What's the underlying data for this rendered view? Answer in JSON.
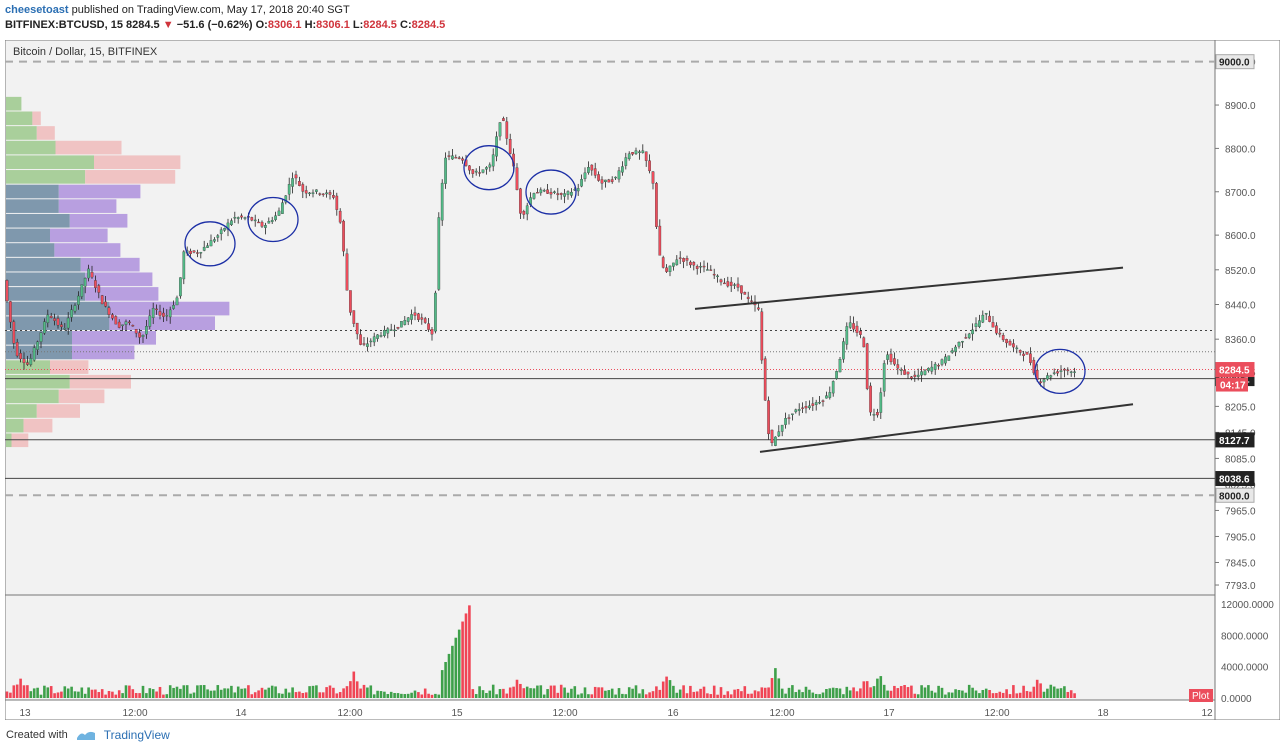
{
  "header": {
    "author": "cheesetoast",
    "published_text": "published on TradingView.com, May 17, 2018 20:40 SGT",
    "symbol": "BITFINEX:BTCUSD, 15",
    "last": "8284.5",
    "change": "−51.6 (−0.62%)",
    "open_label": "O:",
    "open": "8306.1",
    "high_label": "H:",
    "high": "8306.1",
    "low_label": "L:",
    "low": "8284.5",
    "close_label": "C:",
    "close": "8284.5"
  },
  "chart_title": "Bitcoin / Dollar, 15, BITFINEX",
  "footer": {
    "created_with": "Created with",
    "brand": "TradingView"
  },
  "colors": {
    "up": "#53b987",
    "down": "#eb4d5c",
    "wick": "#222222",
    "vp_up": "#a9cf9b",
    "vp_down": "#f0c3c3",
    "vp_up_va": "#7f98ad",
    "vp_down_va": "#b89fe0",
    "pane_bg": "#f2f2f2",
    "price_tag": "#eb4d5c",
    "level_tag": "#222222",
    "ellipse": "#1c2fa6"
  },
  "chart_data": {
    "type": "candlestick",
    "title": "Bitcoin / Dollar, 15, BITFINEX",
    "y_axis_ticks": [
      "9000.0",
      "8900.0",
      "8800.0",
      "8700.0",
      "8600.0",
      "8520.0",
      "8440.0",
      "8360.0",
      "8284.5",
      "8205.0",
      "8145.0",
      "8085.0",
      "8025.0",
      "7965.0",
      "7905.0",
      "7845.0",
      "7793.0"
    ],
    "ylim": [
      7770,
      9050
    ],
    "x_axis_ticks": [
      "13",
      "12:00",
      "14",
      "12:00",
      "15",
      "12:00",
      "16",
      "12:00",
      "17",
      "12:00",
      "18",
      "12"
    ],
    "price_labels": {
      "level_9000": "9000.0",
      "last_price": "8284.5",
      "countdown": "04:17",
      "level_8269": "8269.1",
      "level_8127": "8127.7",
      "level_8038": "8038.6",
      "level_8000": "8000.0"
    },
    "price_path": [
      [
        0,
        8500
      ],
      [
        12,
        8330
      ],
      [
        25,
        8300
      ],
      [
        45,
        8420
      ],
      [
        60,
        8380
      ],
      [
        75,
        8460
      ],
      [
        85,
        8520
      ],
      [
        100,
        8440
      ],
      [
        115,
        8390
      ],
      [
        125,
        8400
      ],
      [
        138,
        8360
      ],
      [
        150,
        8430
      ],
      [
        162,
        8410
      ],
      [
        175,
        8460
      ],
      [
        180,
        8560
      ],
      [
        195,
        8560
      ],
      [
        215,
        8600
      ],
      [
        230,
        8640
      ],
      [
        245,
        8640
      ],
      [
        260,
        8620
      ],
      [
        275,
        8650
      ],
      [
        290,
        8740
      ],
      [
        300,
        8700
      ],
      [
        315,
        8700
      ],
      [
        330,
        8690
      ],
      [
        338,
        8620
      ],
      [
        345,
        8440
      ],
      [
        358,
        8340
      ],
      [
        375,
        8370
      ],
      [
        395,
        8390
      ],
      [
        410,
        8420
      ],
      [
        420,
        8400
      ],
      [
        430,
        8370
      ],
      [
        436,
        8660
      ],
      [
        442,
        8780
      ],
      [
        458,
        8780
      ],
      [
        470,
        8740
      ],
      [
        488,
        8760
      ],
      [
        498,
        8880
      ],
      [
        510,
        8760
      ],
      [
        518,
        8640
      ],
      [
        530,
        8700
      ],
      [
        545,
        8700
      ],
      [
        560,
        8690
      ],
      [
        575,
        8710
      ],
      [
        585,
        8760
      ],
      [
        598,
        8720
      ],
      [
        612,
        8730
      ],
      [
        625,
        8790
      ],
      [
        640,
        8790
      ],
      [
        650,
        8720
      ],
      [
        655,
        8560
      ],
      [
        662,
        8510
      ],
      [
        675,
        8550
      ],
      [
        690,
        8530
      ],
      [
        705,
        8520
      ],
      [
        720,
        8490
      ],
      [
        735,
        8480
      ],
      [
        745,
        8450
      ],
      [
        755,
        8430
      ],
      [
        760,
        8260
      ],
      [
        767,
        8110
      ],
      [
        780,
        8170
      ],
      [
        795,
        8200
      ],
      [
        810,
        8210
      ],
      [
        825,
        8230
      ],
      [
        835,
        8300
      ],
      [
        845,
        8400
      ],
      [
        860,
        8360
      ],
      [
        866,
        8190
      ],
      [
        875,
        8190
      ],
      [
        882,
        8330
      ],
      [
        895,
        8290
      ],
      [
        910,
        8270
      ],
      [
        925,
        8290
      ],
      [
        940,
        8310
      ],
      [
        955,
        8350
      ],
      [
        968,
        8380
      ],
      [
        982,
        8420
      ],
      [
        995,
        8370
      ],
      [
        1010,
        8340
      ],
      [
        1025,
        8320
      ],
      [
        1035,
        8260
      ],
      [
        1048,
        8280
      ],
      [
        1060,
        8290
      ],
      [
        1072,
        8284.5
      ]
    ],
    "ellipses_x": [
      205,
      268,
      484,
      546,
      1055
    ],
    "trend_lines": [
      {
        "name": "upper-channel",
        "from": [
          690,
          8430
        ],
        "to": [
          1118,
          8525
        ]
      },
      {
        "name": "lower-channel",
        "from": [
          755,
          8100
        ],
        "to": [
          1128,
          8210
        ]
      }
    ],
    "horizontal_levels": [
      {
        "price": 9000,
        "style": "dashed"
      },
      {
        "price": 8380,
        "style": "dotted"
      },
      {
        "price": 8331,
        "style": "dotted-thin"
      },
      {
        "price": 8290,
        "style": "dotted-red"
      },
      {
        "price": 8269,
        "style": "solid"
      },
      {
        "price": 8128,
        "style": "solid"
      },
      {
        "price": 8039,
        "style": "solid"
      },
      {
        "price": 8000,
        "style": "dashed"
      }
    ],
    "volume_profile": {
      "price_range": [
        8110,
        8920
      ],
      "rows": [
        {
          "up": 0.14,
          "down": 0.0
        },
        {
          "up": 0.24,
          "down": 0.07
        },
        {
          "up": 0.28,
          "down": 0.15
        },
        {
          "up": 0.45,
          "down": 0.55
        },
        {
          "up": 0.8,
          "down": 0.72
        },
        {
          "up": 0.72,
          "down": 0.75
        },
        {
          "up": 0.48,
          "down": 0.68,
          "va": true
        },
        {
          "up": 0.48,
          "down": 0.48,
          "va": true
        },
        {
          "up": 0.58,
          "down": 0.48,
          "va": true
        },
        {
          "up": 0.4,
          "down": 0.48,
          "va": true
        },
        {
          "up": 0.44,
          "down": 0.55,
          "va": true
        },
        {
          "up": 0.68,
          "down": 0.49,
          "va": true
        },
        {
          "up": 0.72,
          "down": 0.56,
          "va": true
        },
        {
          "up": 0.72,
          "down": 0.61,
          "va": true
        },
        {
          "up": 0.94,
          "down": 1.0,
          "va": true
        },
        {
          "up": 0.94,
          "down": 0.88,
          "va": true
        },
        {
          "up": 0.6,
          "down": 0.7,
          "va": true
        },
        {
          "up": 0.6,
          "down": 0.52,
          "va": true
        },
        {
          "up": 0.4,
          "down": 0.32
        },
        {
          "up": 0.58,
          "down": 0.51
        },
        {
          "up": 0.48,
          "down": 0.38
        },
        {
          "up": 0.28,
          "down": 0.36
        },
        {
          "up": 0.16,
          "down": 0.24
        },
        {
          "up": 0.05,
          "down": 0.14
        }
      ]
    },
    "volume": {
      "y_axis_ticks": [
        "12000.0000",
        "8000.0000",
        "4000.0000",
        "0.0000"
      ],
      "ylim": [
        0,
        12500
      ],
      "plot_label": "Plot",
      "spike": {
        "x_range": [
          437,
          465
        ],
        "max": 12000
      },
      "peaks": [
        [
          15,
          3400
        ],
        [
          200,
          2200
        ],
        [
          348,
          4200
        ],
        [
          512,
          2900
        ],
        [
          663,
          4600
        ],
        [
          770,
          4200
        ],
        [
          860,
          3500
        ],
        [
          875,
          4500
        ],
        [
          1032,
          3100
        ]
      ]
    }
  }
}
